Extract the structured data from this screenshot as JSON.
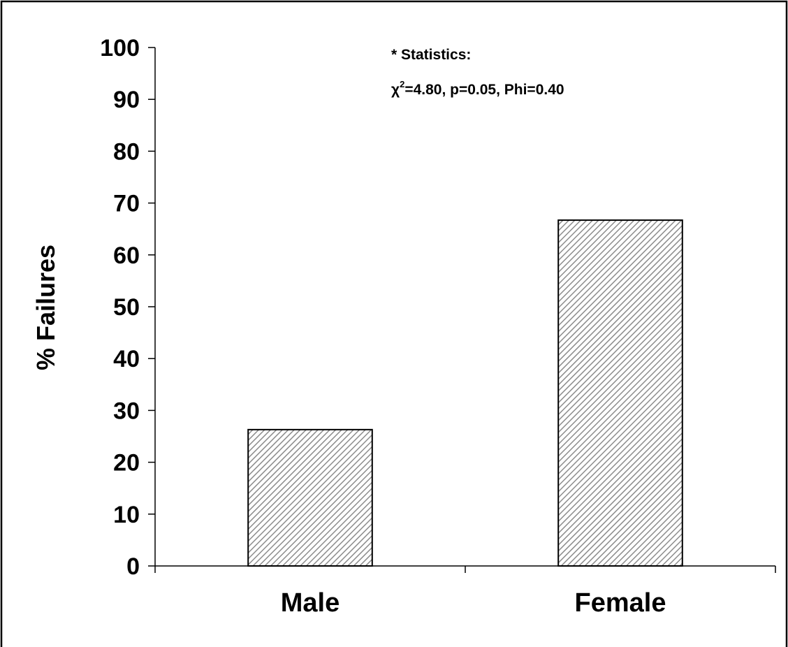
{
  "chart_data": {
    "type": "bar",
    "title": "",
    "xlabel": "",
    "ylabel": "% Failures",
    "categories": [
      "Male",
      "Female"
    ],
    "values": [
      26.3,
      66.7
    ],
    "ylim": [
      0,
      100
    ],
    "ytick_values": [
      0,
      10,
      20,
      30,
      40,
      50,
      60,
      70,
      80,
      90,
      100
    ],
    "ytick_labels": [
      "0",
      "10",
      "20",
      "30",
      "40",
      "50",
      "60",
      "70",
      "80",
      "90",
      "100"
    ],
    "grid": false,
    "legend": "none",
    "bar_fill": "hatched gray diagonal",
    "annotation": {
      "line1": "* Statistics:",
      "chi_symbol": "χ",
      "chi_sup": "2",
      "line2_rest": "=4.80, p=0.05, Phi=0.40"
    }
  }
}
